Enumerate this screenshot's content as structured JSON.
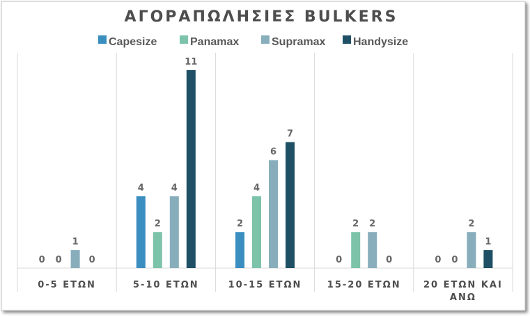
{
  "chart_data": {
    "type": "bar",
    "title": "ΑΓΟΡΑΠΩΛΗΣΙΕΣ BULKERS",
    "xlabel": "",
    "ylabel": "",
    "categories": [
      "0-5 ΕΤΩΝ",
      "5-10 ΕΤΩΝ",
      "10-15 ΕΤΩΝ",
      "15-20 ΕΤΩΝ",
      "20 ΕΤΩΝ ΚΑΙ ΑΝΩ"
    ],
    "series": [
      {
        "name": "Capesize",
        "color": "#3a8fc0",
        "values": [
          0,
          4,
          2,
          0,
          0
        ]
      },
      {
        "name": "Panamax",
        "color": "#7cc3a9",
        "values": [
          0,
          2,
          4,
          2,
          0
        ]
      },
      {
        "name": "Supramax",
        "color": "#88aebb",
        "values": [
          1,
          4,
          6,
          2,
          2
        ]
      },
      {
        "name": "Handysize",
        "color": "#1f5065",
        "values": [
          0,
          11,
          7,
          0,
          1
        ]
      }
    ],
    "ylim": [
      0,
      11
    ],
    "grid": "vertical category separators",
    "legend": "top",
    "data_labels": true
  }
}
